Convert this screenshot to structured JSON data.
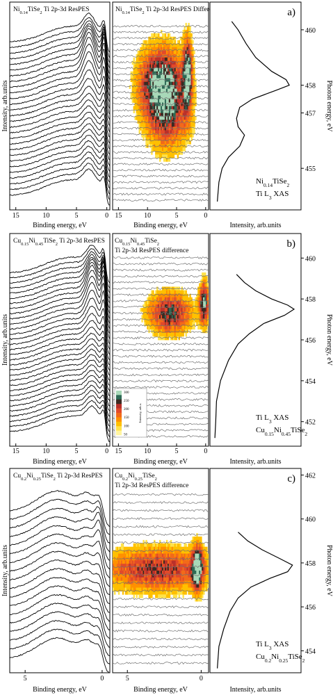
{
  "figure": {
    "colors": {
      "stroke": "#000000",
      "panel_bg": "#ffffff",
      "diff_line": "#707070"
    },
    "colormap": [
      "#fff4a0",
      "#ffe24a",
      "#ffc000",
      "#ff9000",
      "#f26a1a",
      "#e14a2a",
      "#b9312a",
      "#3b2a22",
      "#2e6a55",
      "#a8d8b8"
    ],
    "colorbar": {
      "ticks": [
        "300",
        "250",
        "200",
        "150",
        "100",
        "50"
      ],
      "label": "Intensity, arb.u."
    }
  },
  "chart_data": [
    {
      "id": "a",
      "type": "line",
      "panel_label": "a)",
      "resPES": {
        "title": "Ni0.14TiSe2 Ti 2p-3d ResPES",
        "xlabel": "Binding energy, eV",
        "ylabel": "Intensity, arb.units",
        "xlim": [
          16,
          -0.5
        ],
        "xticks": [
          15,
          10,
          5,
          0
        ],
        "n_spectra": 28,
        "feature_peaks_eV": [
          2.9,
          0.4
        ]
      },
      "difference": {
        "type": "heatmap",
        "title": "Ni0.14TiSe2 Ti 2p-3d ResPES Differencies",
        "xlabel": "Binding energy, eV",
        "xlim": [
          16,
          -0.5
        ],
        "xticks": [
          15,
          10,
          5,
          0
        ],
        "hotspots": [
          {
            "binding_energy_eV": 7.7,
            "photon_energy_eV": 458.1,
            "intensity": 1.0
          },
          {
            "binding_energy_eV": 3.1,
            "photon_energy_eV": 458.4,
            "intensity": 1.0
          },
          {
            "binding_energy_eV": 6.5,
            "photon_energy_eV": 456.8,
            "intensity": 0.55
          }
        ]
      },
      "xas": {
        "xlabel": "Intensity, arb.units",
        "ylabel": "Photon energy, eV",
        "ylim": [
          453.5,
          461
        ],
        "yticks": [
          460,
          458,
          457,
          455
        ],
        "annotation_lines": [
          "Ni0.14TiSe2",
          "Ti L3 XAS"
        ],
        "points": [
          [
            460.3,
            0.22
          ],
          [
            460.0,
            0.3
          ],
          [
            459.5,
            0.4
          ],
          [
            459.0,
            0.52
          ],
          [
            458.5,
            0.72
          ],
          [
            458.2,
            0.9
          ],
          [
            458.0,
            0.94
          ],
          [
            457.8,
            0.76
          ],
          [
            457.5,
            0.48
          ],
          [
            457.2,
            0.32
          ],
          [
            456.8,
            0.28
          ],
          [
            456.5,
            0.3
          ],
          [
            456.2,
            0.38
          ],
          [
            455.8,
            0.32
          ],
          [
            455.4,
            0.18
          ],
          [
            455.0,
            0.1
          ],
          [
            454.5,
            0.06
          ],
          [
            453.8,
            0.04
          ]
        ]
      }
    },
    {
      "id": "b",
      "type": "line",
      "panel_label": "b)",
      "resPES": {
        "title": "Cu0.15Ni0.45TiSe2 Ti 2p-3d ResPES",
        "xlabel": "Binding energy, eV",
        "ylabel": "Intensity, arb.units",
        "xlim": [
          16,
          -0.5
        ],
        "xticks": [
          15,
          10,
          5,
          0
        ],
        "n_spectra": 32,
        "feature_peaks_eV": [
          2.4,
          0.5
        ]
      },
      "difference": {
        "type": "heatmap",
        "title_line1": "Cu0.15Ni0.45TiSe2",
        "title_line2": "Ti 2p-3d ResPES difference",
        "xlabel": "Binding energy, eV",
        "xlim": [
          16,
          -0.5
        ],
        "xticks": [
          15,
          10,
          5,
          0
        ],
        "hotspots": [
          {
            "binding_energy_eV": 6.2,
            "photon_energy_eV": 457.3,
            "intensity": 0.8
          },
          {
            "binding_energy_eV": 0.3,
            "photon_energy_eV": 457.8,
            "intensity": 1.0
          }
        ]
      },
      "xas": {
        "xlabel": "Intensity, arb.units",
        "ylabel": "Photon energy, eV",
        "ylim": [
          450.8,
          461.2
        ],
        "yticks": [
          460,
          458,
          456,
          454,
          452
        ],
        "annotation_lines": [
          "Ti L3 XAS",
          "Cu0.15Ni0.45TiSe2"
        ],
        "points": [
          [
            459.2,
            0.28
          ],
          [
            458.8,
            0.38
          ],
          [
            458.4,
            0.52
          ],
          [
            458.0,
            0.72
          ],
          [
            457.7,
            0.92
          ],
          [
            457.5,
            1.0
          ],
          [
            457.2,
            0.88
          ],
          [
            456.8,
            0.62
          ],
          [
            456.3,
            0.44
          ],
          [
            455.8,
            0.3
          ],
          [
            455.0,
            0.18
          ],
          [
            454.0,
            0.08
          ],
          [
            453.0,
            0.03
          ],
          [
            452.0,
            0.02
          ],
          [
            451.2,
            0.01
          ]
        ]
      }
    },
    {
      "id": "c",
      "type": "line",
      "panel_label": "c)",
      "resPES": {
        "title": "Cu0.2Ni0.25TiSe2 Ti 2p-3d ResPES",
        "xlabel": "Binding energy, eV",
        "ylabel": "Intensity, arb.units",
        "xlim": [
          6,
          -0.5
        ],
        "xticks": [
          5,
          0
        ],
        "n_spectra": 18,
        "feature_peaks_eV": [
          2.8,
          0.9,
          0.2
        ]
      },
      "difference": {
        "type": "heatmap",
        "title_line1": "Cu0.2Ni0.25TiSe2",
        "title_line2": "Ti 2p-3d ResPES difference",
        "xlabel": "Binding energy, eV",
        "xlim": [
          6,
          -0.5
        ],
        "xticks": [
          5,
          0
        ],
        "hotspots": [
          {
            "binding_energy_eV": 3.0,
            "photon_energy_eV": 457.7,
            "intensity": 0.7
          },
          {
            "binding_energy_eV": 0.25,
            "photon_energy_eV": 457.8,
            "intensity": 1.0
          }
        ]
      },
      "xas": {
        "xlabel": "Intensity, arb.units",
        "ylabel": "Photon energy, eV",
        "ylim": [
          453.0,
          462.3
        ],
        "yticks": [
          462,
          460,
          458,
          456,
          454
        ],
        "annotation_lines": [
          "Ti L3 XAS",
          "Cu0.2Ni0.25TiSe2"
        ],
        "points": [
          [
            459.4,
            0.3
          ],
          [
            459.0,
            0.42
          ],
          [
            458.6,
            0.6
          ],
          [
            458.2,
            0.82
          ],
          [
            457.9,
            0.98
          ],
          [
            457.6,
            0.92
          ],
          [
            457.3,
            0.7
          ],
          [
            456.9,
            0.46
          ],
          [
            456.4,
            0.3
          ],
          [
            455.8,
            0.2
          ],
          [
            455.0,
            0.12
          ],
          [
            454.2,
            0.06
          ],
          [
            453.2,
            0.04
          ]
        ]
      }
    }
  ]
}
